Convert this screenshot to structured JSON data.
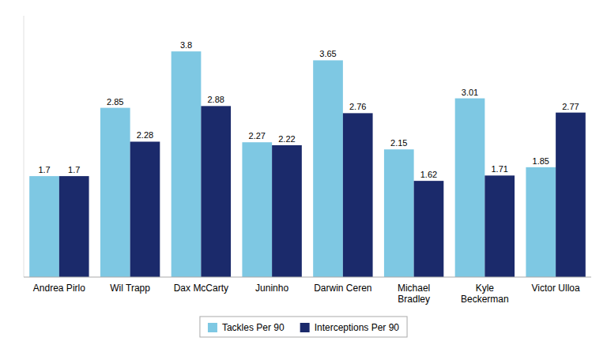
{
  "chart_data": {
    "type": "bar",
    "categories": [
      "Andrea Pirlo",
      "Wil Trapp",
      "Dax McCarty",
      "Juninho",
      "Darwin Ceren",
      "Michael\nBradley",
      "Kyle\nBeckerman",
      "Victor Ulloa"
    ],
    "series": [
      {
        "name": "Tackles Per 90",
        "color": "#7EC8E3",
        "values": [
          1.7,
          2.85,
          3.8,
          2.27,
          3.65,
          2.15,
          3.01,
          1.85
        ]
      },
      {
        "name": "Interceptions Per 90",
        "color": "#1B2A6B",
        "values": [
          1.7,
          2.28,
          2.88,
          2.22,
          2.76,
          1.62,
          1.71,
          2.77
        ]
      }
    ],
    "ylim": [
      0,
      4.4
    ],
    "grid": false,
    "legend": "bottom",
    "data_labels": true,
    "tick_labels": "x"
  }
}
